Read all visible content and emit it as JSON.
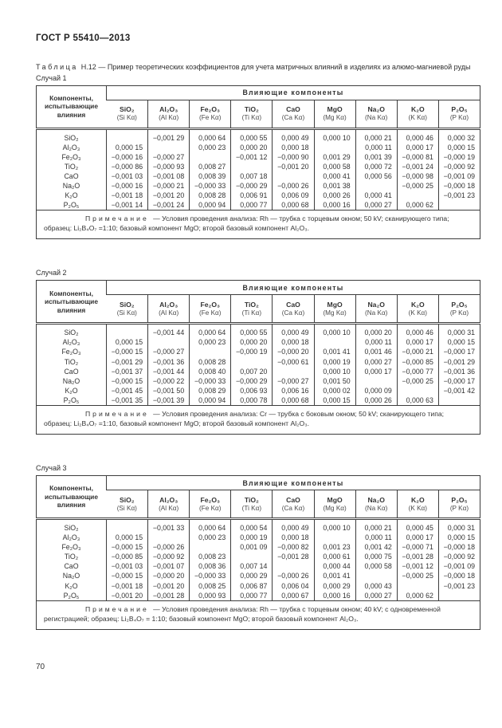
{
  "header": {
    "title": "ГОСТ Р 55410—2013"
  },
  "caption": {
    "label": "Таблица",
    "number": "Н.12",
    "text": "— Пример теоретических коэффициентов для учета матричных влияний в изделиях из алюмо-магниевой руды"
  },
  "table_head": {
    "stub": "Компоненты, испытывающие влияния",
    "group": "Влияющие компоненты",
    "columns": [
      {
        "formula": "SiO₂",
        "line": "(Si Kα)"
      },
      {
        "formula": "Al₂O₃",
        "line": "(Al Kα)"
      },
      {
        "formula": "Fe₂O₃",
        "line": "(Fe Kα)"
      },
      {
        "formula": "TiO₂",
        "line": "(Ti Kα)"
      },
      {
        "formula": "CaO",
        "line": "(Ca Kα)"
      },
      {
        "formula": "MgO",
        "line": "(Mg Kα)"
      },
      {
        "formula": "Na₂O",
        "line": "(Na Kα)"
      },
      {
        "formula": "K₂O",
        "line": "(K Kα)"
      },
      {
        "formula": "P₂O₅",
        "line": "(P Kα)"
      }
    ]
  },
  "cases": [
    {
      "label": "Случай 1",
      "rows": [
        {
          "component": "SiO₂",
          "values": [
            "",
            "−0,001 29",
            "0,000 64",
            "0,000 55",
            "0,000 49",
            "0,000 10",
            "0,000 21",
            "0,000 46",
            "0,000 32"
          ]
        },
        {
          "component": "Al₂O₃",
          "values": [
            "0,000 15",
            "",
            "0,000 23",
            "0,000 20",
            "0,000 18",
            "",
            "0,000 11",
            "0,000 17",
            "0,000 15"
          ]
        },
        {
          "component": "Fe₂O₃",
          "values": [
            "−0,000 16",
            "−0,000 27",
            "",
            "−0,001 12",
            "−0,000 90",
            "0,001 29",
            "0,001 39",
            "−0,000 81",
            "−0,000 19"
          ]
        },
        {
          "component": "TiO₂",
          "values": [
            "−0,000 86",
            "−0,000 93",
            "0,008 27",
            "",
            "−0,001 20",
            "0,000 58",
            "0,000 72",
            "−0,001 24",
            "−0,000 92"
          ]
        },
        {
          "component": "CaO",
          "values": [
            "−0,001 03",
            "−0,001 08",
            "0,008 39",
            "0,007 18",
            "",
            "0,000 41",
            "0,000 56",
            "−0,000 98",
            "−0,001 09"
          ]
        },
        {
          "component": "Na₂O",
          "values": [
            "−0,000 16",
            "−0,000 21",
            "−0,000 33",
            "−0,000 29",
            "−0,000 26",
            "0,001 38",
            "",
            "−0,000 25",
            "−0,000 18"
          ]
        },
        {
          "component": "K₂O",
          "values": [
            "−0,001 18",
            "−0,001 20",
            "0,008 28",
            "0,006 91",
            "0,006 09",
            "0,000 26",
            "0,000 41",
            "",
            "−0,001 23"
          ]
        },
        {
          "component": "P₂O₅",
          "values": [
            "−0,001 14",
            "−0,001 24",
            "0,000 94",
            "0,000 77",
            "0,000 68",
            "0,000 16",
            "0,000 27",
            "0,000 62",
            ""
          ]
        }
      ],
      "note": {
        "label": "Примечание",
        "text": "— Условия проведения анализа: Rh — трубка с торцевым окном; 50 kV; сканирующего типа; образец: Li₂B₄O₇ =1:10; базовый компонент MgO; второй базовый компонент Al₂O₃."
      }
    },
    {
      "label": "Случай 2",
      "rows": [
        {
          "component": "SiO₂",
          "values": [
            "",
            "−0,001 44",
            "0,000 64",
            "0,000 55",
            "0,000 49",
            "0,000 10",
            "0,000 20",
            "0,000 46",
            "0,000 31"
          ]
        },
        {
          "component": "Al₂O₃",
          "values": [
            "0,000 15",
            "",
            "0,000 23",
            "0,000 20",
            "0,000 18",
            "",
            "0,000 11",
            "0,000 17",
            "0,000 15"
          ]
        },
        {
          "component": "Fe₂O₃",
          "values": [
            "−0,000 15",
            "−0,000 27",
            "",
            "−0,000 19",
            "−0,000 20",
            "0,001 41",
            "0,001 46",
            "−0,000 21",
            "−0,000 17"
          ]
        },
        {
          "component": "TiO₂",
          "values": [
            "−0,001 29",
            "−0,001 36",
            "0,008 28",
            "",
            "−0,000 61",
            "0,000 19",
            "0,000 27",
            "−0,000 85",
            "−0,001 29"
          ]
        },
        {
          "component": "CaO",
          "values": [
            "−0,001 37",
            "−0,001 44",
            "0,008 40",
            "0,007 20",
            "",
            "0,000 10",
            "0,000 17",
            "−0,000 77",
            "−0,001 36"
          ]
        },
        {
          "component": "Na₂O",
          "values": [
            "−0,000 15",
            "−0,000 22",
            "−0,000 33",
            "−0,000 29",
            "−0,000 27",
            "0,001 50",
            "",
            "−0,000 25",
            "−0,000 17"
          ]
        },
        {
          "component": "K₂O",
          "values": [
            "−0,001 45",
            "−0,001 50",
            "0,008 29",
            "0,006 93",
            "0,006 16",
            "0,000 02",
            "0,000 09",
            "",
            "−0,001 42"
          ]
        },
        {
          "component": "P₂O₅",
          "values": [
            "−0,001 35",
            "−0,001 39",
            "0,000 94",
            "0,000 78",
            "0,000 68",
            "0,000 15",
            "0,000 26",
            "0,000 63",
            ""
          ]
        }
      ],
      "note": {
        "label": "Примечание",
        "text": "— Условия проведения анализа: Cr — трубка с боковым окном; 50 kV; сканирующего типа; образец: Li₂B₄O₇ =1:10, базовый компонент MgO; второй базовый компонент Al₂O₃."
      }
    },
    {
      "label": "Случай 3",
      "rows": [
        {
          "component": "SiO₂",
          "values": [
            "",
            "−0,001 33",
            "0,000 64",
            "0,000 54",
            "0,000 49",
            "0,000 10",
            "0,000 21",
            "0,000 45",
            "0,000 31"
          ]
        },
        {
          "component": "Al₂O₃",
          "values": [
            "0,000 15",
            "",
            "0,000 23",
            "0,000 19",
            "0,000 18",
            "",
            "0,000 11",
            "0,000 17",
            "0,000 15"
          ]
        },
        {
          "component": "Fe₂O₃",
          "values": [
            "−0,000 15",
            "−0,000 26",
            "",
            "0,001 09",
            "−0,000 82",
            "0,001 23",
            "0,001 42",
            "−0,000 71",
            "−0,000 18"
          ]
        },
        {
          "component": "TiO₂",
          "values": [
            "−0,000 85",
            "−0,000 92",
            "0,008 23",
            "",
            "−0,001 28",
            "0,000 61",
            "0,000 75",
            "−0,001 28",
            "−0,000 92"
          ]
        },
        {
          "component": "CaO",
          "values": [
            "−0,001 03",
            "−0,001 07",
            "0,008 36",
            "0,007 14",
            "",
            "0,000 44",
            "0,000 58",
            "−0,001 12",
            "−0,001 09"
          ]
        },
        {
          "component": "Na₂O",
          "values": [
            "−0,000 15",
            "−0,000 20",
            "−0,000 33",
            "0,000 29",
            "−0,000 26",
            "0,001 41",
            "",
            "−0,000 25",
            "−0,000 18"
          ]
        },
        {
          "component": "K₂O",
          "values": [
            "−0,001 18",
            "−0,001 20",
            "0,008 25",
            "0,006 87",
            "0,006 04",
            "0,000 29",
            "0,000 43",
            "",
            "−0,001 23"
          ]
        },
        {
          "component": "P₂O₅",
          "values": [
            "−0,001 20",
            "−0,001 28",
            "0,000 93",
            "0,000 77",
            "0,000 67",
            "0,000 16",
            "0,000 27",
            "0,000 62",
            ""
          ]
        }
      ],
      "note": {
        "label": "Примечание",
        "text": "— Условия проведения анализа: Rh — трубка с торцевым окном; 40 kV; с одновременной регистрацией; образец: Li₂B₄O₇ = 1:10; базовый компонент MgO; второй базовый компонент Al₂O₃."
      }
    }
  ],
  "footer": {
    "page_number": "70"
  }
}
